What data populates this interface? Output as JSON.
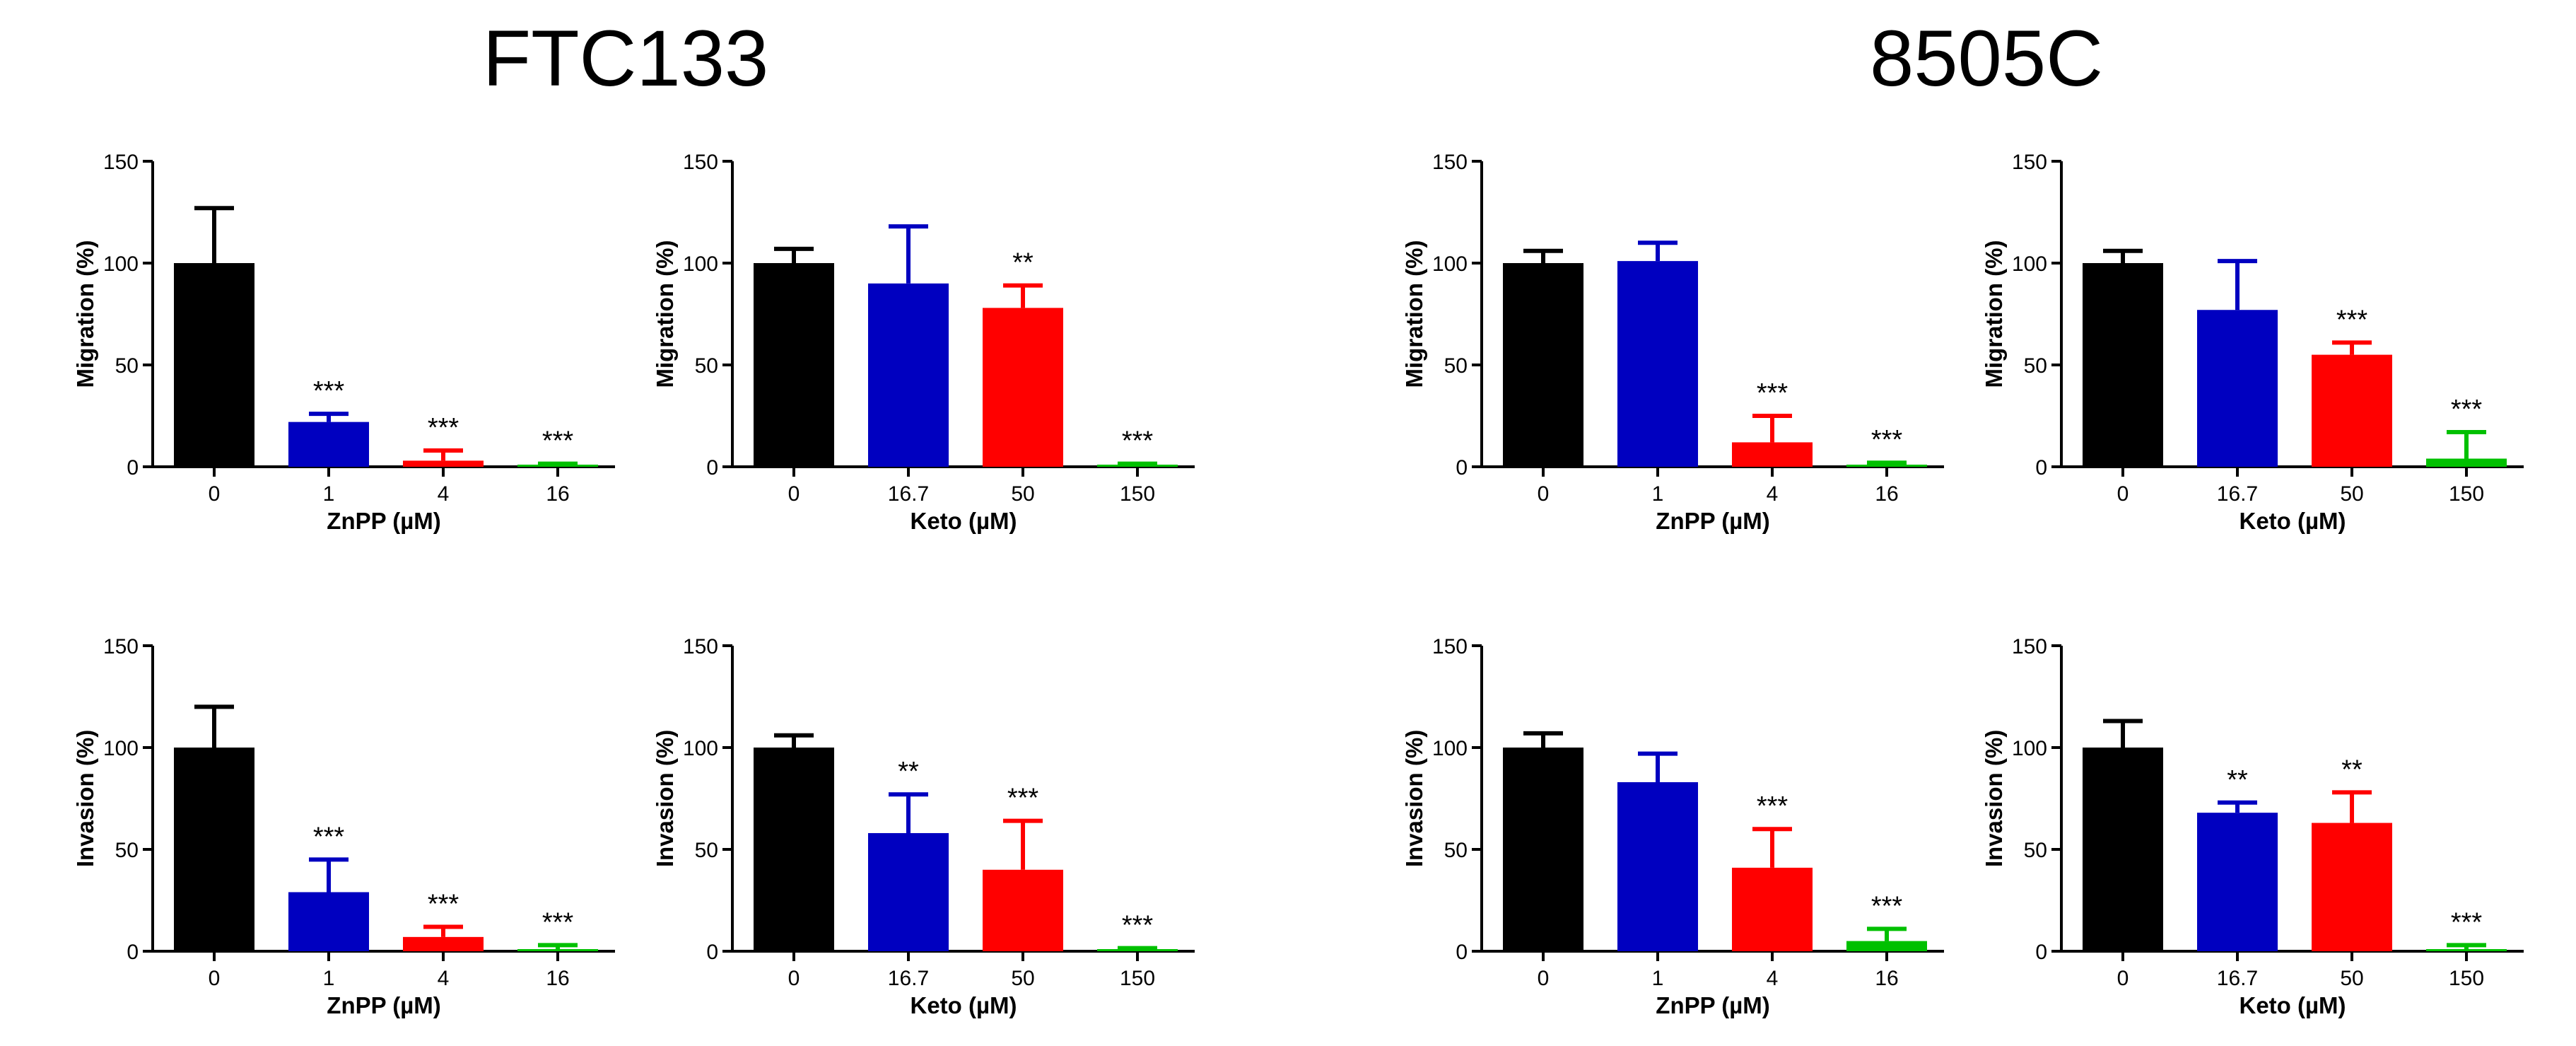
{
  "headings": {
    "left": "FTC133",
    "right": "8505C"
  },
  "colors": {
    "c0": "#000000",
    "c1": "#0000c0",
    "c2": "#ff0000",
    "c3": "#00c000"
  },
  "chart_data": [
    {
      "type": "bar",
      "group": "FTC133",
      "categories": [
        "0",
        "1",
        "4",
        "16"
      ],
      "values": [
        100,
        22,
        3,
        1
      ],
      "errors": [
        27,
        4,
        5,
        0.5
      ],
      "sig": [
        "",
        "***",
        "***",
        "***"
      ],
      "xlabel": "ZnPP (µM)",
      "ylabel": "Migration (%)",
      "ylim": [
        0,
        150
      ],
      "yticks": [
        0,
        50,
        100,
        150
      ]
    },
    {
      "type": "bar",
      "group": "FTC133",
      "categories": [
        "0",
        "16.7",
        "50",
        "150"
      ],
      "values": [
        100,
        90,
        78,
        1
      ],
      "errors": [
        7,
        28,
        11,
        0.5
      ],
      "sig": [
        "",
        "",
        "**",
        "***"
      ],
      "xlabel": "Keto (µM)",
      "ylabel": "Migration (%)",
      "ylim": [
        0,
        150
      ],
      "yticks": [
        0,
        50,
        100,
        150
      ]
    },
    {
      "type": "bar",
      "group": "8505C",
      "categories": [
        "0",
        "1",
        "4",
        "16"
      ],
      "values": [
        100,
        101,
        12,
        1
      ],
      "errors": [
        6,
        9,
        13,
        1
      ],
      "sig": [
        "",
        "",
        "***",
        "***"
      ],
      "xlabel": "ZnPP (µM)",
      "ylabel": "Migration (%)",
      "ylim": [
        0,
        150
      ],
      "yticks": [
        0,
        50,
        100,
        150
      ]
    },
    {
      "type": "bar",
      "group": "8505C",
      "categories": [
        "0",
        "16.7",
        "50",
        "150"
      ],
      "values": [
        100,
        77,
        55,
        4
      ],
      "errors": [
        6,
        24,
        6,
        13
      ],
      "sig": [
        "",
        "",
        "***",
        "***"
      ],
      "xlabel": "Keto (µM)",
      "ylabel": "Migration (%)",
      "ylim": [
        0,
        150
      ],
      "yticks": [
        0,
        50,
        100,
        150
      ]
    },
    {
      "type": "bar",
      "group": "FTC133",
      "categories": [
        "0",
        "1",
        "4",
        "16"
      ],
      "values": [
        100,
        29,
        7,
        1
      ],
      "errors": [
        20,
        16,
        5,
        2
      ],
      "sig": [
        "",
        "***",
        "***",
        "***"
      ],
      "xlabel": "ZnPP (µM)",
      "ylabel": "Invasion (%)",
      "ylim": [
        0,
        150
      ],
      "yticks": [
        0,
        50,
        100,
        150
      ]
    },
    {
      "type": "bar",
      "group": "FTC133",
      "categories": [
        "0",
        "16.7",
        "50",
        "150"
      ],
      "values": [
        100,
        58,
        40,
        1
      ],
      "errors": [
        6,
        19,
        24,
        0.5
      ],
      "sig": [
        "",
        "**",
        "***",
        "***"
      ],
      "xlabel": "Keto (µM)",
      "ylabel": "Invasion (%)",
      "ylim": [
        0,
        150
      ],
      "yticks": [
        0,
        50,
        100,
        150
      ]
    },
    {
      "type": "bar",
      "group": "8505C",
      "categories": [
        "0",
        "1",
        "4",
        "16"
      ],
      "values": [
        100,
        83,
        41,
        5
      ],
      "errors": [
        7,
        14,
        19,
        6
      ],
      "sig": [
        "",
        "",
        "***",
        "***"
      ],
      "xlabel": "ZnPP (µM)",
      "ylabel": "Invasion (%)",
      "ylim": [
        0,
        150
      ],
      "yticks": [
        0,
        50,
        100,
        150
      ]
    },
    {
      "type": "bar",
      "group": "8505C",
      "categories": [
        "0",
        "16.7",
        "50",
        "150"
      ],
      "values": [
        100,
        68,
        63,
        1
      ],
      "errors": [
        13,
        5,
        15,
        2
      ],
      "sig": [
        "",
        "**",
        "**",
        "***"
      ],
      "xlabel": "Keto (µM)",
      "ylabel": "Invasion (%)",
      "ylim": [
        0,
        150
      ],
      "yticks": [
        0,
        50,
        100,
        150
      ]
    }
  ]
}
